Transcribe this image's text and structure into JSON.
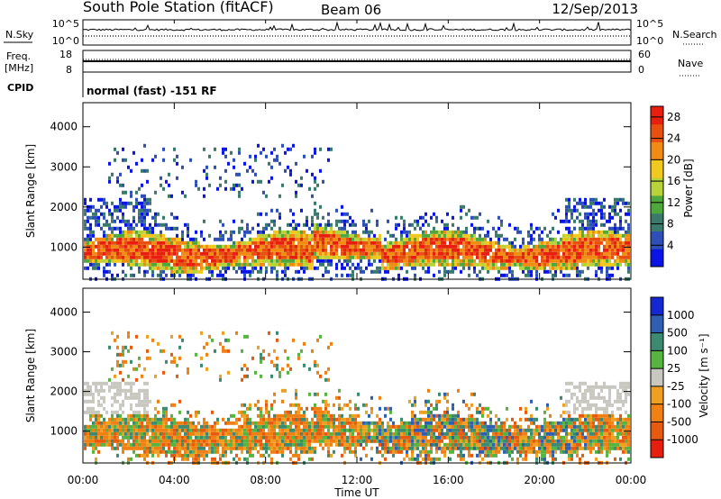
{
  "header": {
    "station": "South Pole Station (fitACF)",
    "beam": "Beam 06",
    "date": "12/Sep/2013"
  },
  "top_panel": {
    "left_label": "N.Sky",
    "right_label": "N.Search",
    "left_ticks": [
      "10^5",
      "10^0"
    ],
    "right_ticks": [
      "10^5",
      "10^0"
    ]
  },
  "freq_panel": {
    "left_label_1": "Freq.",
    "left_label_2": "[MHz]",
    "right_label": "Nave",
    "left_ticks": [
      "18",
      "8"
    ],
    "right_ticks": [
      "60",
      "0"
    ]
  },
  "cpid": {
    "label": "CPID",
    "value": "normal (fast) -151 RF"
  },
  "colors": {
    "power_scale": [
      "#0a14e6",
      "#2e4fb8",
      "#3a7a6a",
      "#4fa83c",
      "#b8d23a",
      "#f0c81e",
      "#f08c14",
      "#e85010",
      "#e81e0e"
    ],
    "velocity_scale": [
      "#1428d2",
      "#2f5fb0",
      "#3c8a70",
      "#58b440",
      "#c8c8c0",
      "#f0a020",
      "#f08014",
      "#e85a10",
      "#e61e0e"
    ]
  },
  "chart_data": [
    {
      "type": "heatmap",
      "name": "power",
      "xlabel": "",
      "ylabel": "Slant Range [km]",
      "x_ticks": [
        "00:00",
        "04:00",
        "08:00",
        "12:00",
        "16:00",
        "20:00",
        "00:00"
      ],
      "y_ticks": [
        1000,
        2000,
        3000,
        4000
      ],
      "ylim": [
        200,
        4600
      ],
      "colorbar_label": "Power [dB]",
      "colorbar_ticks": [
        4,
        8,
        12,
        16,
        20,
        24,
        28
      ],
      "colorbar_range": [
        0,
        30
      ]
    },
    {
      "type": "heatmap",
      "name": "velocity",
      "xlabel": "Time UT",
      "ylabel": "Slant Range [km]",
      "x_ticks": [
        "00:00",
        "04:00",
        "08:00",
        "12:00",
        "16:00",
        "20:00",
        "00:00"
      ],
      "y_ticks": [
        1000,
        2000,
        3000,
        4000
      ],
      "ylim": [
        200,
        4600
      ],
      "colorbar_label": "Velocity [m s⁻¹]",
      "colorbar_ticks": [
        1000,
        500,
        100,
        25,
        -25,
        -100,
        -500,
        -1000
      ]
    }
  ]
}
